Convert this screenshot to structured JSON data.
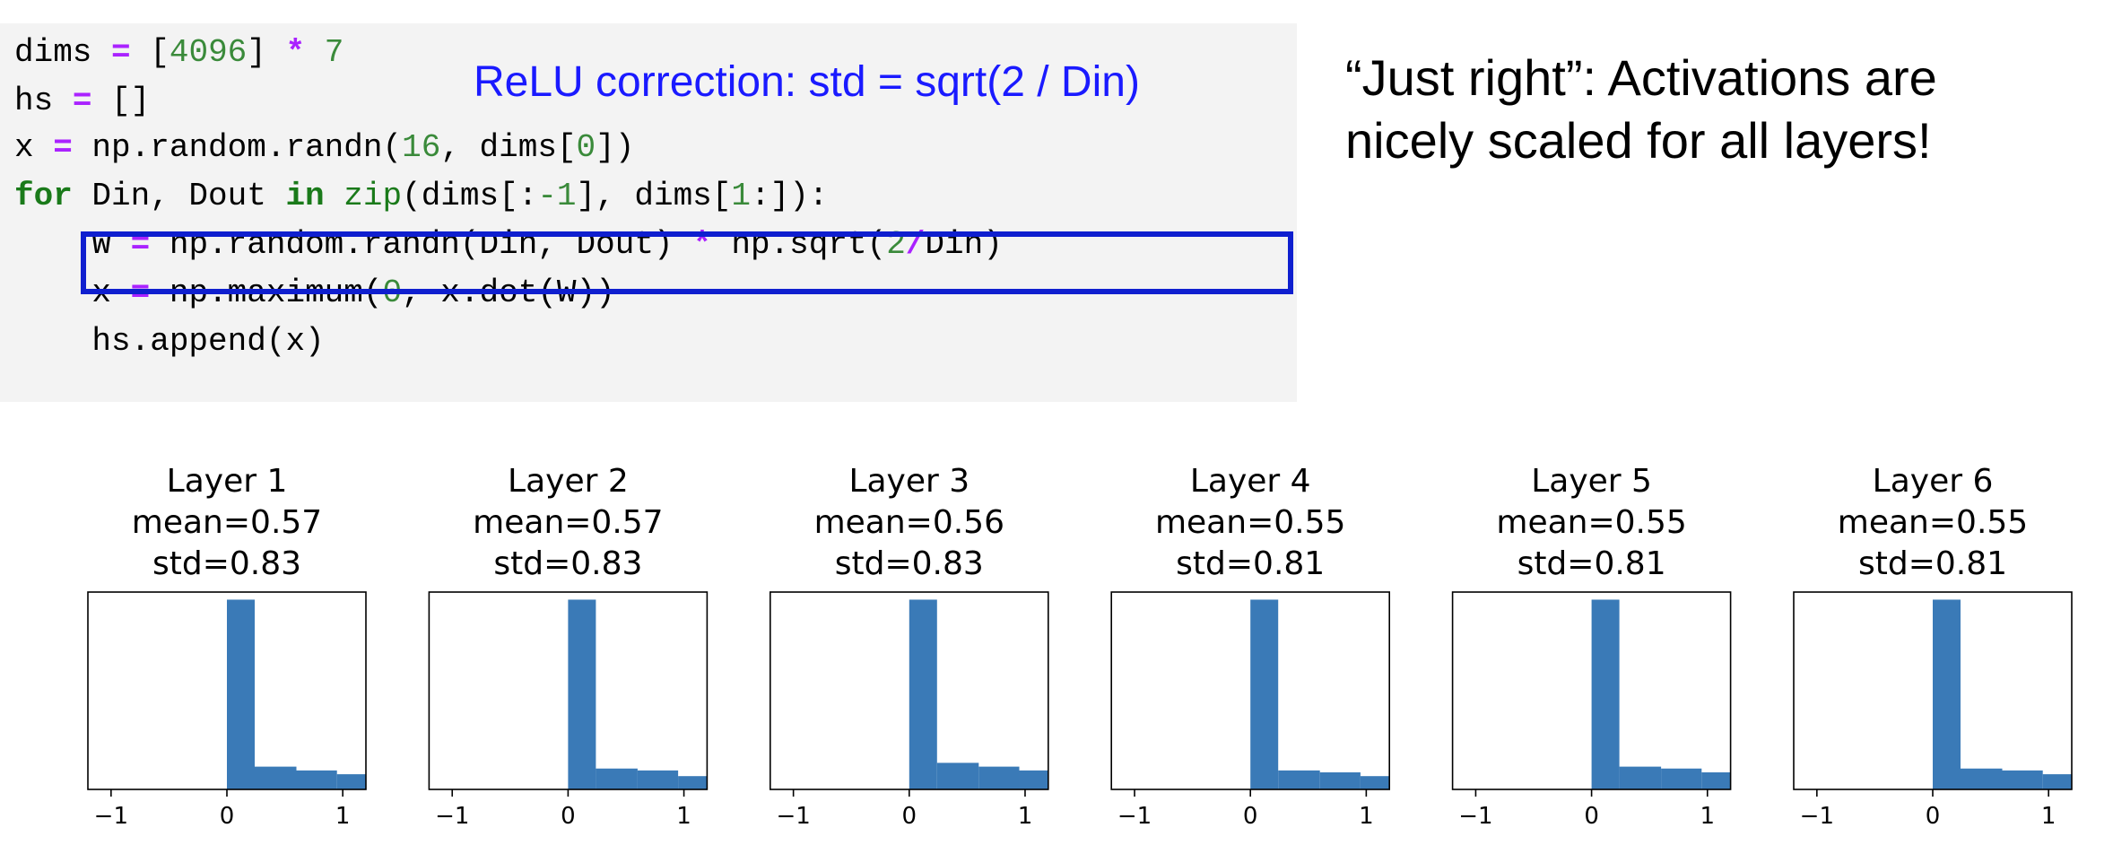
{
  "code": {
    "lines": [
      [
        {
          "t": "dims "
        },
        {
          "t": "=",
          "c": "op"
        },
        {
          "t": " ["
        },
        {
          "t": "4096",
          "c": "num"
        },
        {
          "t": "] "
        },
        {
          "t": "*",
          "c": "op"
        },
        {
          "t": " "
        },
        {
          "t": "7",
          "c": "num"
        }
      ],
      [
        {
          "t": "hs "
        },
        {
          "t": "=",
          "c": "op"
        },
        {
          "t": " []"
        }
      ],
      [
        {
          "t": "x "
        },
        {
          "t": "=",
          "c": "op"
        },
        {
          "t": " np.random.randn("
        },
        {
          "t": "16",
          "c": "num"
        },
        {
          "t": ", dims["
        },
        {
          "t": "0",
          "c": "num"
        },
        {
          "t": "])"
        }
      ],
      [
        {
          "t": "for",
          "c": "kw"
        },
        {
          "t": " Din, Dout "
        },
        {
          "t": "in",
          "c": "kw"
        },
        {
          "t": " "
        },
        {
          "t": "zip",
          "c": "fn"
        },
        {
          "t": "(dims[:"
        },
        {
          "t": "-1",
          "c": "num"
        },
        {
          "t": "], dims["
        },
        {
          "t": "1",
          "c": "num"
        },
        {
          "t": ":]):"
        }
      ],
      [
        {
          "t": "    W "
        },
        {
          "t": "=",
          "c": "op"
        },
        {
          "t": " np.random.randn(Din, Dout) "
        },
        {
          "t": "*",
          "c": "op"
        },
        {
          "t": " np.sqrt("
        },
        {
          "t": "2",
          "c": "num"
        },
        {
          "t": "/",
          "c": "op"
        },
        {
          "t": "Din)"
        }
      ],
      [
        {
          "t": "    x "
        },
        {
          "t": "=",
          "c": "op"
        },
        {
          "t": " np.maximum("
        },
        {
          "t": "0",
          "c": "num"
        },
        {
          "t": ", x.dot(W))"
        }
      ],
      [
        {
          "t": "    hs.append(x)"
        }
      ]
    ]
  },
  "annotation": "ReLU correction: std = sqrt(2 / Din)",
  "caption": {
    "line1": "“Just right”: Activations are",
    "line2": "nicely scaled for all layers!"
  },
  "colors": {
    "bar": "#3a7ab7",
    "highlight_box": "#0f1fcf",
    "annotation": "#1a1aff"
  },
  "chart_data": [
    {
      "type": "bar",
      "title": [
        "Layer 1",
        "mean=0.57",
        "std=0.83"
      ],
      "xlim": [
        -1.2,
        1.2
      ],
      "xticks": [
        -1,
        0,
        1
      ],
      "bin_edges": [
        0,
        0.2,
        0.6,
        1.2
      ],
      "values": [
        100,
        12,
        10,
        8
      ]
    },
    {
      "type": "bar",
      "title": [
        "Layer 2",
        "mean=0.57",
        "std=0.83"
      ],
      "xlim": [
        -1.2,
        1.2
      ],
      "xticks": [
        -1,
        0,
        1
      ],
      "bin_edges": [
        0,
        0.2,
        0.6,
        1.2
      ],
      "values": [
        100,
        11,
        10,
        7
      ]
    },
    {
      "type": "bar",
      "title": [
        "Layer 3",
        "mean=0.56",
        "std=0.83"
      ],
      "xlim": [
        -1.2,
        1.2
      ],
      "xticks": [
        -1,
        0,
        1
      ],
      "bin_edges": [
        0,
        0.2,
        0.6,
        1.2
      ],
      "values": [
        100,
        14,
        12,
        10
      ]
    },
    {
      "type": "bar",
      "title": [
        "Layer 4",
        "mean=0.55",
        "std=0.81"
      ],
      "xlim": [
        -1.2,
        1.2
      ],
      "xticks": [
        -1,
        0,
        1
      ],
      "bin_edges": [
        0,
        0.2,
        0.6,
        1.2
      ],
      "values": [
        100,
        10,
        9,
        7
      ]
    },
    {
      "type": "bar",
      "title": [
        "Layer 5",
        "mean=0.55",
        "std=0.81"
      ],
      "xlim": [
        -1.2,
        1.2
      ],
      "xticks": [
        -1,
        0,
        1
      ],
      "bin_edges": [
        0,
        0.2,
        0.6,
        1.2
      ],
      "values": [
        100,
        12,
        11,
        9
      ]
    },
    {
      "type": "bar",
      "title": [
        "Layer 6",
        "mean=0.55",
        "std=0.81"
      ],
      "xlim": [
        -1.2,
        1.2
      ],
      "xticks": [
        -1,
        0,
        1
      ],
      "bin_edges": [
        0,
        0.2,
        0.6,
        1.2
      ],
      "values": [
        100,
        11,
        10,
        8
      ]
    }
  ]
}
